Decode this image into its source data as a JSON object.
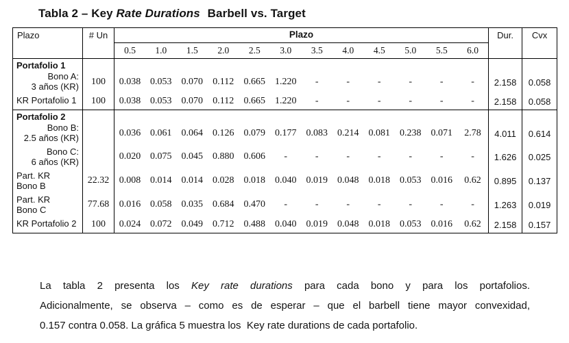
{
  "colors": {
    "ink": "#131313",
    "border": "#000000",
    "background": "#ffffff"
  },
  "title": {
    "segments": [
      {
        "text": "Tabla 2 – Key ",
        "italic": false
      },
      {
        "text": "Rate Durations",
        "italic": true
      },
      {
        "text": " Barbell vs. Target",
        "italic": false
      }
    ]
  },
  "table": {
    "corner_header": "Plazo",
    "units_header": "# Un",
    "plazo_span_header": "Plazo",
    "tick_labels": [
      "0.5",
      "1.0",
      "1.5",
      "2.0",
      "2.5",
      "3.0",
      "3.5",
      "4.0",
      "4.5",
      "5.0",
      "5.5",
      "6.0"
    ],
    "dur_header": "Dur.",
    "cvx_header": "Cvx",
    "sections": [
      {
        "title": "Portafolio 1",
        "rows": [
          {
            "label_lines": [
              "Bono A:",
              "3 años (KR)"
            ],
            "label_align": "right",
            "un": "100",
            "values": [
              "0.038",
              "0.053",
              "0.070",
              "0.112",
              "0.665",
              "1.220",
              "-",
              "-",
              "-",
              "-",
              "-",
              "-"
            ],
            "dur": "2.158",
            "cvx": "0.058"
          },
          {
            "label_lines": [
              "KR Portafolio 1"
            ],
            "label_align": "left",
            "un": "100",
            "values": [
              "0.038",
              "0.053",
              "0.070",
              "0.112",
              "0.665",
              "1.220",
              "-",
              "-",
              "-",
              "-",
              "-",
              "-"
            ],
            "dur": "2.158",
            "cvx": "0.058"
          }
        ]
      },
      {
        "title": "Portafolio 2",
        "rows": [
          {
            "label_lines": [
              "Bono B:",
              "2.5 años (KR)"
            ],
            "label_align": "right",
            "un": "",
            "values": [
              "0.036",
              "0.061",
              "0.064",
              "0.126",
              "0.079",
              "0.177",
              "0.083",
              "0.214",
              "0.081",
              "0.238",
              "0.071",
              "2.78"
            ],
            "dur": "4.011",
            "cvx": "0.614"
          },
          {
            "label_lines": [
              "Bono C:",
              "6 años (KR)"
            ],
            "label_align": "right",
            "un": "",
            "values": [
              "0.020",
              "0.075",
              "0.045",
              "0.880",
              "0.606",
              "-",
              "-",
              "-",
              "-",
              "-",
              "-",
              "-"
            ],
            "dur": "1.626",
            "cvx": "0.025"
          },
          {
            "label_lines": [
              "Part. KR",
              "Bono B"
            ],
            "label_align": "left",
            "un": "22.32",
            "values": [
              "0.008",
              "0.014",
              "0.014",
              "0.028",
              "0.018",
              "0.040",
              "0.019",
              "0.048",
              "0.018",
              "0.053",
              "0.016",
              "0.62"
            ],
            "dur": "0.895",
            "cvx": "0.137"
          },
          {
            "label_lines": [
              "Part. KR",
              "Bono C"
            ],
            "label_align": "left",
            "un": "77.68",
            "values": [
              "0.016",
              "0.058",
              "0.035",
              "0.684",
              "0.470",
              "-",
              "-",
              "-",
              "-",
              "-",
              "-",
              "-"
            ],
            "dur": "1.263",
            "cvx": "0.019"
          },
          {
            "label_lines": [
              "KR Portafolio 2"
            ],
            "label_align": "left",
            "un": "100",
            "values": [
              "0.024",
              "0.072",
              "0.049",
              "0.712",
              "0.488",
              "0.040",
              "0.019",
              "0.048",
              "0.018",
              "0.053",
              "0.016",
              "0.62"
            ],
            "dur": "2.158",
            "cvx": "0.157"
          }
        ]
      }
    ]
  },
  "paragraph": {
    "lines": [
      {
        "segments": [
          {
            "text": "La tabla 2 presenta los ",
            "italic": false
          },
          {
            "text": "Key rate durations",
            "italic": true
          },
          {
            "text": " para cada bono y para los portafolios.",
            "italic": false
          }
        ]
      },
      {
        "segments": [
          {
            "text": "Adicionalmente, se observa – como es de esperar – que el barbell tiene mayor convexidad,",
            "italic": false
          }
        ]
      },
      {
        "segments": [
          {
            "text": "0.157 contra 0.058. La gráfica 5 muestra los  Key rate durations de cada portafolio.",
            "italic": false
          }
        ]
      }
    ]
  }
}
